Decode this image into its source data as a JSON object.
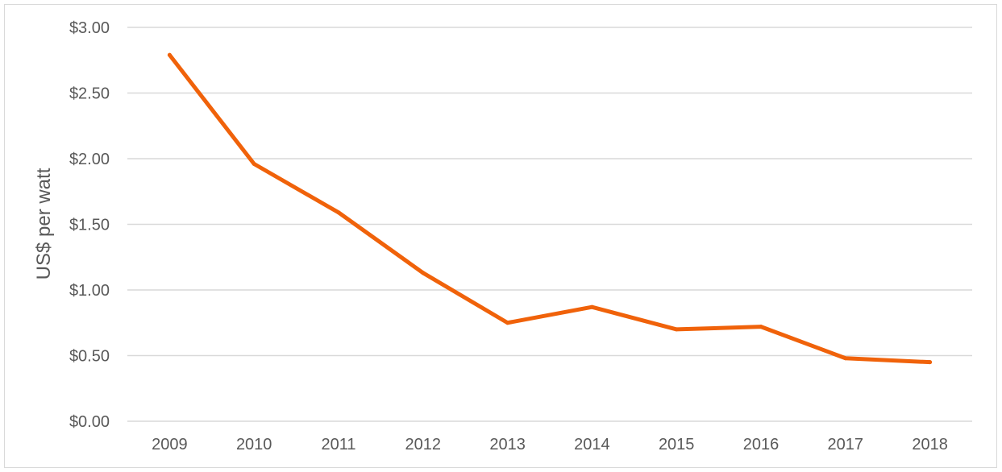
{
  "chart_data": {
    "type": "line",
    "title": "",
    "xlabel": "",
    "ylabel": "US$ per watt",
    "ylim": [
      0,
      3
    ],
    "y_tick_step": 0.5,
    "y_tick_labels": [
      "$0.00",
      "$0.50",
      "$1.00",
      "$1.50",
      "$2.00",
      "$2.50",
      "$3.00"
    ],
    "grid": "horizontal",
    "legend": "none",
    "categories": [
      "2009",
      "2010",
      "2011",
      "2012",
      "2013",
      "2014",
      "2015",
      "2016",
      "2017",
      "2018"
    ],
    "series": [
      {
        "color": "#f0620a",
        "values": [
          2.79,
          1.96,
          1.59,
          1.13,
          0.75,
          0.87,
          0.7,
          0.72,
          0.48,
          0.45
        ]
      }
    ]
  },
  "colors": {
    "line": "#f0620a",
    "grid": "#d9d9d9",
    "text": "#595959"
  }
}
